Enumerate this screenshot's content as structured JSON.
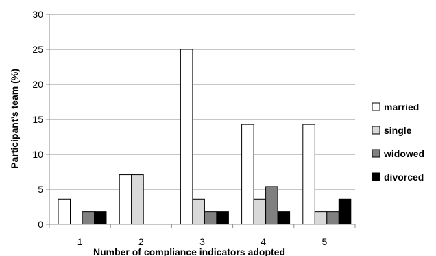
{
  "chart_data": {
    "type": "bar",
    "title": "",
    "xlabel": "Number of compliance indicators adopted",
    "ylabel": "Participant’s team (%)",
    "categories": [
      "1",
      "2",
      "3",
      "4",
      "5"
    ],
    "ylim": [
      0,
      30
    ],
    "yticks": [
      0,
      5,
      10,
      15,
      20,
      25,
      30
    ],
    "grid": true,
    "legend_position": "right",
    "series": [
      {
        "name": "married",
        "color": "#ffffff",
        "values": [
          3.6,
          7.1,
          25.0,
          14.3,
          14.3
        ]
      },
      {
        "name": "single",
        "color": "#d9d9d9",
        "values": [
          0,
          7.1,
          3.6,
          3.6,
          1.8
        ]
      },
      {
        "name": "widowed",
        "color": "#808080",
        "values": [
          1.8,
          0,
          1.8,
          5.4,
          1.8
        ]
      },
      {
        "name": "divorced",
        "color": "#000000",
        "values": [
          1.8,
          0,
          1.8,
          1.8,
          3.6
        ]
      }
    ]
  }
}
